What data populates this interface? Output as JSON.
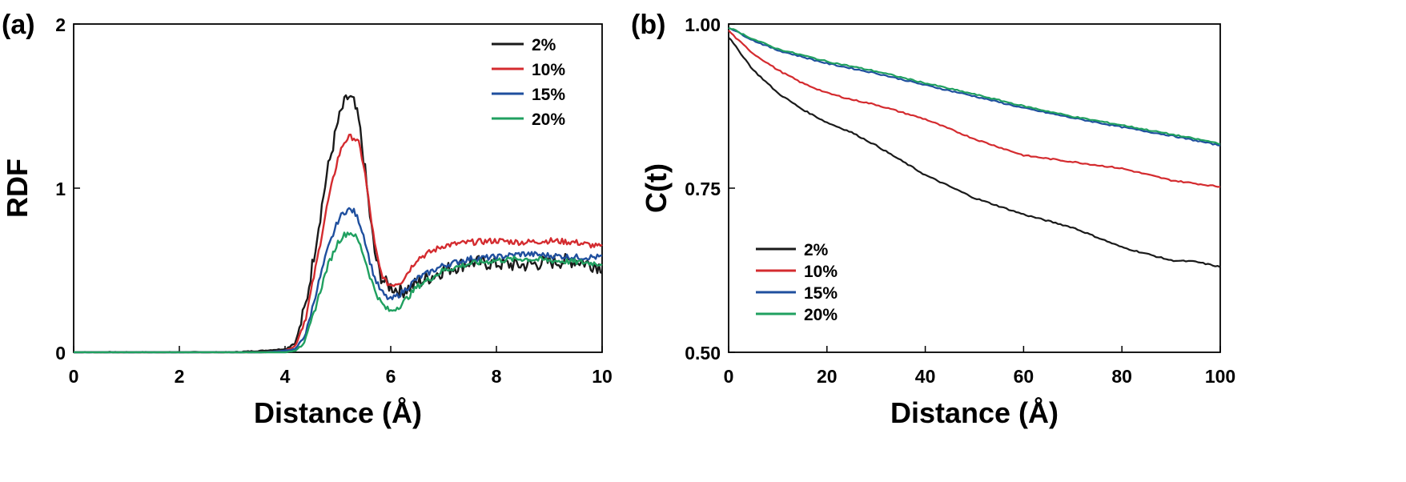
{
  "colors": {
    "2%": "#1a1a1a",
    "10%": "#d42b2f",
    "15%": "#1f4f9e",
    "20%": "#20a060",
    "axis": "#000000"
  },
  "chart_data": [
    {
      "panel": "(a)",
      "type": "line",
      "xlabel": "Distance (Å)",
      "ylabel": "RDF",
      "xlim": [
        0,
        10
      ],
      "ylim": [
        0,
        2
      ],
      "xticks": [
        0,
        2,
        4,
        6,
        8,
        10
      ],
      "yticks": [
        0,
        1,
        2
      ],
      "grid": false,
      "legend_position": "top-right",
      "series": [
        {
          "name": "2%",
          "x": [
            3.0,
            3.6,
            4.0,
            4.2,
            4.4,
            4.6,
            4.8,
            5.0,
            5.1,
            5.2,
            5.3,
            5.4,
            5.5,
            5.6,
            5.7,
            5.8,
            5.9,
            6.0,
            6.2,
            6.5,
            7.0,
            7.5,
            8.0,
            8.5,
            9.0,
            9.5,
            10.0
          ],
          "y": [
            0.0,
            0.01,
            0.02,
            0.06,
            0.3,
            0.7,
            1.1,
            1.4,
            1.5,
            1.56,
            1.52,
            1.4,
            1.15,
            0.85,
            0.6,
            0.47,
            0.42,
            0.4,
            0.37,
            0.42,
            0.5,
            0.55,
            0.54,
            0.53,
            0.55,
            0.56,
            0.52
          ]
        },
        {
          "name": "10%",
          "x": [
            3.6,
            4.0,
            4.2,
            4.4,
            4.6,
            4.8,
            5.0,
            5.1,
            5.2,
            5.3,
            5.4,
            5.5,
            5.6,
            5.7,
            5.8,
            5.9,
            6.0,
            6.2,
            6.5,
            7.0,
            7.5,
            8.0,
            8.5,
            9.0,
            9.5,
            10.0
          ],
          "y": [
            0.0,
            0.01,
            0.04,
            0.22,
            0.55,
            0.9,
            1.18,
            1.27,
            1.31,
            1.31,
            1.27,
            1.12,
            0.88,
            0.65,
            0.5,
            0.43,
            0.41,
            0.43,
            0.57,
            0.65,
            0.67,
            0.68,
            0.67,
            0.68,
            0.67,
            0.64
          ]
        },
        {
          "name": "15%",
          "x": [
            3.6,
            4.0,
            4.2,
            4.4,
            4.6,
            4.8,
            5.0,
            5.1,
            5.2,
            5.3,
            5.4,
            5.5,
            5.6,
            5.7,
            5.8,
            5.9,
            6.0,
            6.2,
            6.5,
            7.0,
            7.5,
            8.0,
            8.5,
            9.0,
            9.5,
            10.0
          ],
          "y": [
            0.0,
            0.01,
            0.02,
            0.12,
            0.38,
            0.62,
            0.8,
            0.85,
            0.87,
            0.86,
            0.8,
            0.7,
            0.56,
            0.45,
            0.38,
            0.34,
            0.32,
            0.36,
            0.45,
            0.53,
            0.57,
            0.58,
            0.6,
            0.59,
            0.58,
            0.58
          ]
        },
        {
          "name": "20%",
          "x": [
            3.6,
            4.0,
            4.2,
            4.4,
            4.6,
            4.8,
            5.0,
            5.1,
            5.2,
            5.3,
            5.4,
            5.5,
            5.6,
            5.7,
            5.8,
            5.9,
            6.0,
            6.2,
            6.5,
            7.0,
            7.5,
            8.0,
            8.5,
            9.0,
            9.5,
            10.0
          ],
          "y": [
            0.0,
            0.0,
            0.01,
            0.08,
            0.3,
            0.52,
            0.67,
            0.71,
            0.73,
            0.72,
            0.67,
            0.58,
            0.47,
            0.38,
            0.31,
            0.27,
            0.25,
            0.29,
            0.4,
            0.5,
            0.54,
            0.56,
            0.57,
            0.56,
            0.55,
            0.54
          ]
        }
      ]
    },
    {
      "panel": "(b)",
      "type": "line",
      "xlabel": "Distance (Å)",
      "ylabel": "C(t)",
      "xlim": [
        0,
        100
      ],
      "ylim": [
        0.5,
        1.0
      ],
      "xticks": [
        0,
        20,
        40,
        60,
        80,
        100
      ],
      "yticks": [
        0.5,
        0.75,
        1.0
      ],
      "ytick_labels": [
        "0.50",
        "0.75",
        "1.00"
      ],
      "grid": false,
      "legend_position": "bottom-left",
      "series": [
        {
          "name": "2%",
          "x": [
            0,
            2,
            5,
            10,
            15,
            20,
            25,
            30,
            40,
            50,
            60,
            70,
            80,
            90,
            95,
            100
          ],
          "y": [
            0.98,
            0.96,
            0.93,
            0.895,
            0.87,
            0.85,
            0.835,
            0.815,
            0.77,
            0.735,
            0.71,
            0.69,
            0.66,
            0.64,
            0.638,
            0.63
          ]
        },
        {
          "name": "10%",
          "x": [
            0,
            2,
            5,
            10,
            15,
            20,
            25,
            30,
            40,
            50,
            60,
            70,
            80,
            90,
            100
          ],
          "y": [
            0.99,
            0.975,
            0.955,
            0.93,
            0.91,
            0.895,
            0.885,
            0.877,
            0.855,
            0.825,
            0.8,
            0.79,
            0.78,
            0.762,
            0.752
          ]
        },
        {
          "name": "15%",
          "x": [
            0,
            5,
            10,
            20,
            30,
            40,
            50,
            60,
            70,
            80,
            90,
            100
          ],
          "y": [
            0.995,
            0.975,
            0.96,
            0.94,
            0.925,
            0.907,
            0.89,
            0.872,
            0.857,
            0.843,
            0.83,
            0.815
          ]
        },
        {
          "name": "20%",
          "x": [
            0,
            5,
            10,
            20,
            30,
            40,
            50,
            60,
            70,
            80,
            90,
            100
          ],
          "y": [
            0.995,
            0.977,
            0.962,
            0.943,
            0.928,
            0.91,
            0.893,
            0.875,
            0.859,
            0.846,
            0.832,
            0.818
          ]
        }
      ]
    }
  ]
}
